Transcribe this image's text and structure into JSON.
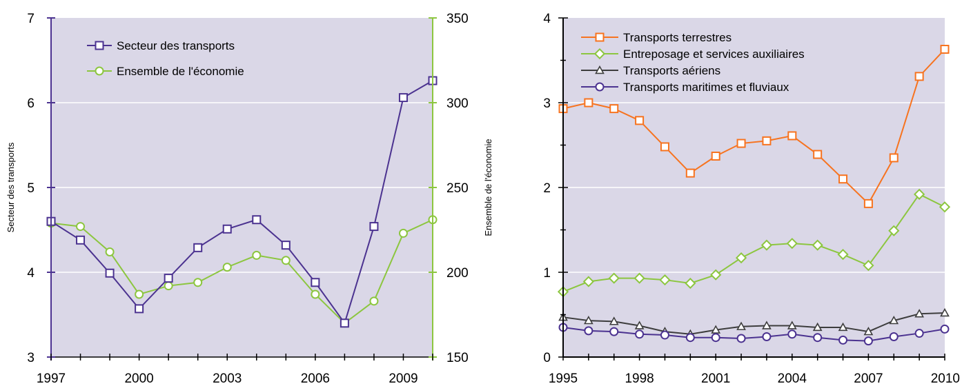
{
  "colors": {
    "plot_bg": "#dad7e7",
    "grid": "#ffffff",
    "left_axis": "#4b3290",
    "right_axis": "#8cc63f",
    "transport": "#4b3290",
    "economy": "#8cc63f",
    "terrestres": "#f7731f",
    "entreposage": "#8cc63f",
    "aeriens": "#3d3d3d",
    "maritimes": "#4b3290"
  },
  "chart_data": [
    {
      "type": "line",
      "x_tick_labels": [
        "1997",
        "2000",
        "2003",
        "2006",
        "2009"
      ],
      "x": [
        1997,
        1998,
        1999,
        2000,
        2001,
        2002,
        2003,
        2004,
        2005,
        2006,
        2007,
        2008,
        2009,
        2010
      ],
      "xlim": [
        1997,
        2010
      ],
      "ylabel": "Secteur des transports",
      "ylim": [
        3,
        7
      ],
      "y_ticks": [
        "3",
        "4",
        "5",
        "6",
        "7"
      ],
      "y2label": "Ensemble de l'économie",
      "y2lim": [
        150,
        350
      ],
      "y2_ticks": [
        "150",
        "200",
        "250",
        "300",
        "350"
      ],
      "grid": true,
      "legend_position": "top-left",
      "series": [
        {
          "name": "Secteur des transports",
          "axis": "left",
          "marker": "square",
          "values": [
            4.6,
            4.38,
            3.99,
            3.57,
            3.93,
            4.29,
            4.51,
            4.62,
            4.32,
            3.88,
            3.4,
            4.54,
            6.06,
            6.26
          ]
        },
        {
          "name": "Ensemble de l'économie",
          "axis": "right",
          "marker": "circle",
          "values": [
            229,
            227,
            212,
            187,
            192,
            194,
            203,
            210,
            207,
            187,
            170,
            183,
            223,
            231
          ]
        }
      ]
    },
    {
      "type": "line",
      "x_tick_labels": [
        "1995",
        "1998",
        "2001",
        "2004",
        "2007",
        "2010"
      ],
      "x": [
        1995,
        1996,
        1997,
        1998,
        1999,
        2000,
        2001,
        2002,
        2003,
        2004,
        2005,
        2006,
        2007,
        2008,
        2009,
        2010
      ],
      "xlim": [
        1995,
        2010
      ],
      "ylim": [
        0,
        4
      ],
      "y_ticks": [
        "0",
        "1",
        "2",
        "3",
        "4"
      ],
      "grid": true,
      "legend_position": "top-left",
      "series": [
        {
          "name": "Transports terrestres",
          "marker": "square",
          "values": [
            2.93,
            3.0,
            2.93,
            2.79,
            2.48,
            2.17,
            2.37,
            2.52,
            2.55,
            2.61,
            2.39,
            2.1,
            1.81,
            2.35,
            3.31,
            3.63
          ]
        },
        {
          "name": "Entreposage et services auxiliaires",
          "marker": "diamond",
          "values": [
            0.77,
            0.89,
            0.93,
            0.93,
            0.91,
            0.87,
            0.97,
            1.17,
            1.32,
            1.34,
            1.32,
            1.21,
            1.08,
            1.49,
            1.92,
            1.77
          ]
        },
        {
          "name": "Transports aériens",
          "marker": "triangle",
          "values": [
            0.47,
            0.43,
            0.42,
            0.37,
            0.3,
            0.27,
            0.32,
            0.36,
            0.37,
            0.37,
            0.35,
            0.35,
            0.3,
            0.43,
            0.51,
            0.52
          ]
        },
        {
          "name": "Transports maritimes et fluviaux",
          "marker": "circle",
          "values": [
            0.35,
            0.31,
            0.3,
            0.27,
            0.26,
            0.23,
            0.23,
            0.22,
            0.24,
            0.27,
            0.23,
            0.2,
            0.19,
            0.24,
            0.28,
            0.33
          ]
        }
      ]
    }
  ]
}
